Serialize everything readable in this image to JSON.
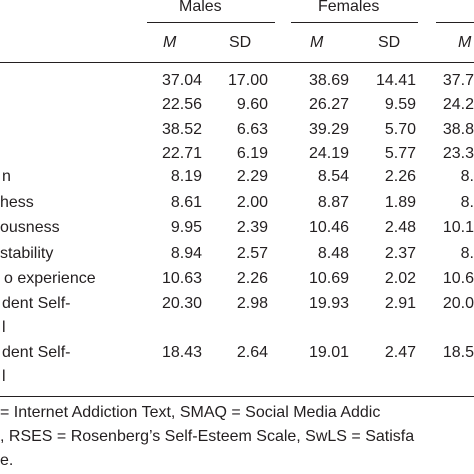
{
  "groups": [
    {
      "label": "Males"
    },
    {
      "label": "Females"
    }
  ],
  "subheaders": [
    "M",
    "SD",
    "M",
    "SD",
    "M"
  ],
  "rows": [
    {
      "label": "",
      "values": [
        "37.04",
        "17.00",
        "38.69",
        "14.41",
        "37.7"
      ]
    },
    {
      "label": "",
      "values": [
        "22.56",
        "9.60",
        "26.27",
        "9.59",
        "24.2"
      ]
    },
    {
      "label": "",
      "values": [
        "38.52",
        "6.63",
        "39.29",
        "5.70",
        "38.8"
      ]
    },
    {
      "label": "",
      "values": [
        "22.71",
        "6.19",
        "24.19",
        "5.77",
        "23.3"
      ]
    },
    {
      "label": "n",
      "values": [
        "8.19",
        "2.29",
        "8.54",
        "2.26",
        "8."
      ]
    },
    {
      "label": "hess",
      "values": [
        "8.61",
        "2.00",
        "8.87",
        "1.89",
        "8."
      ]
    },
    {
      "label": "ousness",
      "values": [
        "9.95",
        "2.39",
        "10.46",
        "2.48",
        "10.1"
      ]
    },
    {
      "label": "stability",
      "values": [
        "8.94",
        "2.57",
        "8.48",
        "2.37",
        "8."
      ]
    },
    {
      "label": "o experience",
      "values": [
        "10.63",
        "2.26",
        "10.69",
        "2.02",
        "10.6"
      ]
    },
    {
      "label": "dent Self-",
      "label2": "l",
      "values": [
        "20.30",
        "2.98",
        "19.93",
        "2.91",
        "20.0"
      ]
    },
    {
      "label": "dent Self-",
      "label2": "l",
      "values": [
        "18.43",
        "2.64",
        "19.01",
        "2.47",
        "18.5"
      ]
    }
  ],
  "note": {
    "line1": "= Internet Addiction Text, SMAQ = Social Media Addic",
    "line2": ", RSES = Rosenberg’s Self-Esteem Scale, SwLS = Satisfa",
    "line3": "e."
  }
}
